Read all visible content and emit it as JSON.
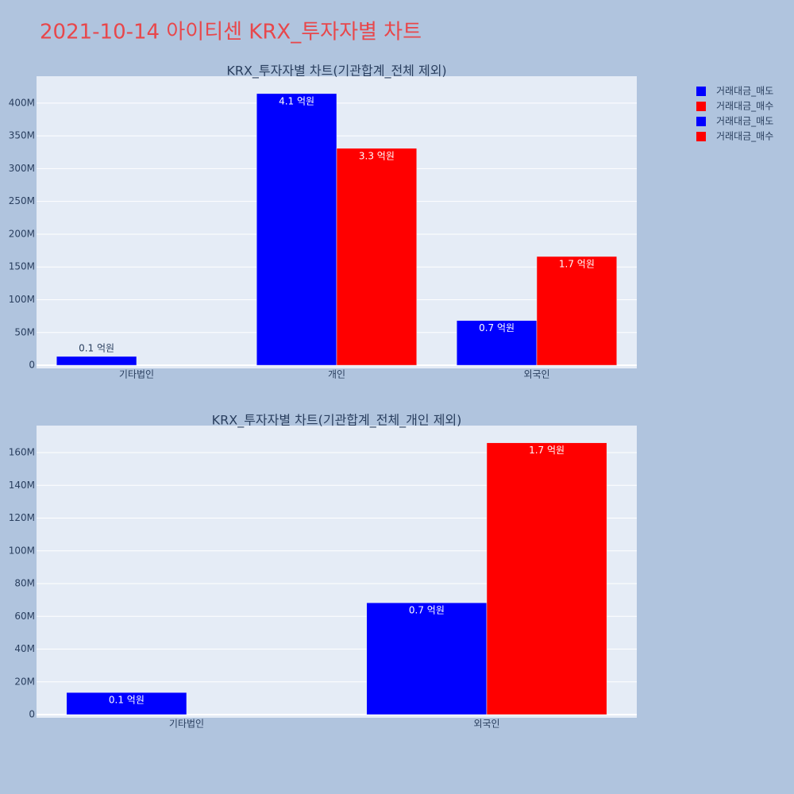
{
  "title": "2021-10-14 아이티센 KRX_투자자별 차트",
  "chart_data": [
    {
      "type": "bar",
      "title": "KRX_투자자별 차트(기관합계_전체 제외)",
      "categories": [
        "기타법인",
        "개인",
        "외국인"
      ],
      "series": [
        {
          "name": "거래대금_매도",
          "color": "#0000ff",
          "values": [
            13500000,
            414500000,
            68300000
          ],
          "value_labels": [
            "0.1 억원",
            "4.1 억원",
            "0.7 억원"
          ]
        },
        {
          "name": "거래대금_매수",
          "color": "#ff0000",
          "values": [
            null,
            331000000,
            166000000
          ],
          "value_labels": [
            null,
            "3.3 억원",
            "1.7 억원"
          ]
        }
      ],
      "ylim": [
        -4800000,
        441000000
      ],
      "yticks": [
        0,
        {
          "value": 50000000,
          "label": "50M"
        },
        {
          "value": 100000000,
          "label": "100M"
        },
        {
          "value": 150000000,
          "label": "150M"
        },
        {
          "value": 200000000,
          "label": "200M"
        },
        {
          "value": 250000000,
          "label": "250M"
        },
        {
          "value": 300000000,
          "label": "300M"
        },
        {
          "value": 350000000,
          "label": "350M"
        },
        {
          "value": 400000000,
          "label": "400M"
        }
      ],
      "grid": true
    },
    {
      "type": "bar",
      "title": "KRX_투자자별 차트(기관합계_전체_개인 제외)",
      "categories": [
        "기타법인",
        "외국인"
      ],
      "series": [
        {
          "name": "거래대금_매도",
          "color": "#0000ff",
          "values": [
            13500000,
            68300000
          ],
          "value_labels": [
            "0.1 억원",
            "0.7 억원"
          ]
        },
        {
          "name": "거래대금_매수",
          "color": "#ff0000",
          "values": [
            null,
            166000000
          ],
          "value_labels": [
            null,
            "1.7 억원"
          ]
        }
      ],
      "ylim": [
        -1940000,
        176500000
      ],
      "yticks": [
        0,
        {
          "value": 20000000,
          "label": "20M"
        },
        {
          "value": 40000000,
          "label": "40M"
        },
        {
          "value": 60000000,
          "label": "60M"
        },
        {
          "value": 80000000,
          "label": "80M"
        },
        {
          "value": 100000000,
          "label": "100M"
        },
        {
          "value": 120000000,
          "label": "120M"
        },
        {
          "value": 140000000,
          "label": "140M"
        },
        {
          "value": 160000000,
          "label": "160M"
        }
      ],
      "grid": true
    }
  ]
}
